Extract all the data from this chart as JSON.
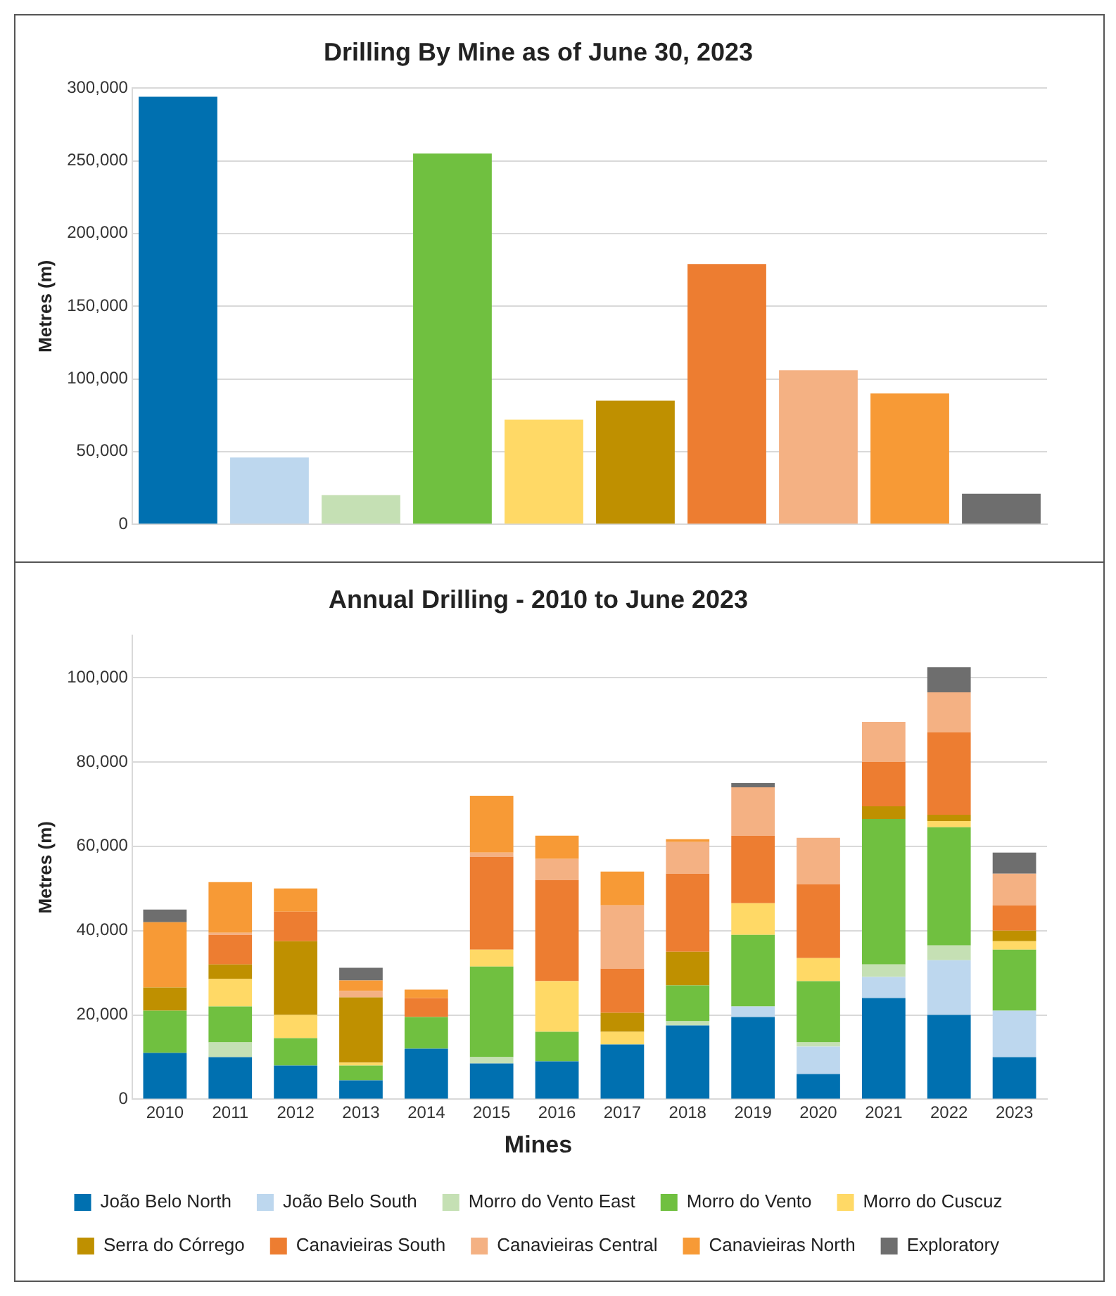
{
  "chart_data": [
    {
      "type": "bar",
      "title": "Drilling By Mine as of June 30, 2023",
      "ylabel": "Metres (m)",
      "categories": [
        null,
        null,
        null,
        null,
        null,
        null,
        null,
        null,
        null,
        null
      ],
      "values": [
        294000,
        46000,
        20000,
        255000,
        72000,
        85000,
        179000,
        106000,
        90000,
        21000
      ],
      "colors": [
        "#0070b0",
        "#bdd7ee",
        "#c5e0b4",
        "#70c040",
        "#ffd966",
        "#bf9000",
        "#ed7d31",
        "#f4b183",
        "#f79a36",
        "#6e6e6e"
      ],
      "ylim": [
        0,
        300000
      ],
      "yticks": [
        {
          "value": 0,
          "label": "0"
        },
        {
          "value": 50000,
          "label": "50,000"
        },
        {
          "value": 100000,
          "label": "100,000"
        },
        {
          "value": 150000,
          "label": "150,000"
        },
        {
          "value": 200000,
          "label": "200,000"
        },
        {
          "value": 250000,
          "label": "250,000"
        },
        {
          "value": 300000,
          "label": "300,000"
        }
      ],
      "grid": "y",
      "legend": false
    },
    {
      "type": "bar",
      "title": "Annual Drilling - 2010 to June 2023",
      "ylabel": "Metres (m)",
      "legend_title": "Mines",
      "stacked": true,
      "categories": [
        "2010",
        "2011",
        "2012",
        "2013",
        "2014",
        "2015",
        "2016",
        "2017",
        "2018",
        "2019",
        "2020",
        "2021",
        "2022",
        "2023"
      ],
      "series": [
        {
          "name": "João Belo North",
          "color": "#0070b0",
          "values": [
            11000,
            10000,
            8000,
            4500,
            12000,
            8500,
            9000,
            13000,
            17500,
            19500,
            6000,
            24000,
            20000,
            10000
          ]
        },
        {
          "name": "João Belo South",
          "color": "#bdd7ee",
          "values": [
            0,
            0,
            0,
            0,
            0,
            0,
            0,
            0,
            0,
            2500,
            6500,
            5000,
            13000,
            11000
          ]
        },
        {
          "name": "Morro do Vento East",
          "color": "#c5e0b4",
          "values": [
            0,
            3500,
            0,
            0,
            0,
            1500,
            0,
            0,
            1000,
            0,
            1000,
            3000,
            3500,
            0
          ]
        },
        {
          "name": "Morro do Vento",
          "color": "#70c040",
          "values": [
            10000,
            8500,
            6500,
            3500,
            7500,
            21500,
            7000,
            0,
            8500,
            17000,
            14500,
            34500,
            28000,
            14500
          ]
        },
        {
          "name": "Morro do Cuscuz",
          "color": "#ffd966",
          "values": [
            0,
            6500,
            5500,
            700,
            0,
            4000,
            12000,
            3000,
            0,
            7500,
            5500,
            0,
            1500,
            2000
          ]
        },
        {
          "name": "Serra do Córrego",
          "color": "#bf9000",
          "values": [
            5500,
            3500,
            17500,
            15500,
            0,
            0,
            0,
            4500,
            8000,
            0,
            0,
            3000,
            1500,
            2500
          ]
        },
        {
          "name": "Canavieiras South",
          "color": "#ed7d31",
          "values": [
            0,
            7000,
            7000,
            0,
            4500,
            22000,
            24000,
            10500,
            18500,
            16000,
            17500,
            10500,
            19500,
            6000
          ]
        },
        {
          "name": "Canavieiras Central",
          "color": "#f4b183",
          "values": [
            0,
            500,
            0,
            1500,
            0,
            1000,
            5000,
            15000,
            7500,
            11500,
            11000,
            9500,
            9500,
            7500
          ]
        },
        {
          "name": "Canavieiras North",
          "color": "#f79a36",
          "values": [
            15500,
            12000,
            5500,
            2500,
            2000,
            13500,
            5500,
            8000,
            700,
            0,
            0,
            0,
            0,
            0
          ]
        },
        {
          "name": "Exploratory",
          "color": "#6e6e6e",
          "values": [
            3000,
            0,
            0,
            3000,
            0,
            0,
            0,
            0,
            0,
            1000,
            0,
            0,
            6000,
            5000
          ]
        }
      ],
      "ylim": [
        0,
        110000
      ],
      "yticks": [
        {
          "value": 0,
          "label": "0"
        },
        {
          "value": 20000,
          "label": "20,000"
        },
        {
          "value": 40000,
          "label": "40,000"
        },
        {
          "value": 60000,
          "label": "60,000"
        },
        {
          "value": 80000,
          "label": "80,000"
        },
        {
          "value": 100000,
          "label": "100,000"
        }
      ],
      "grid": "y",
      "legend": "bottom"
    }
  ]
}
